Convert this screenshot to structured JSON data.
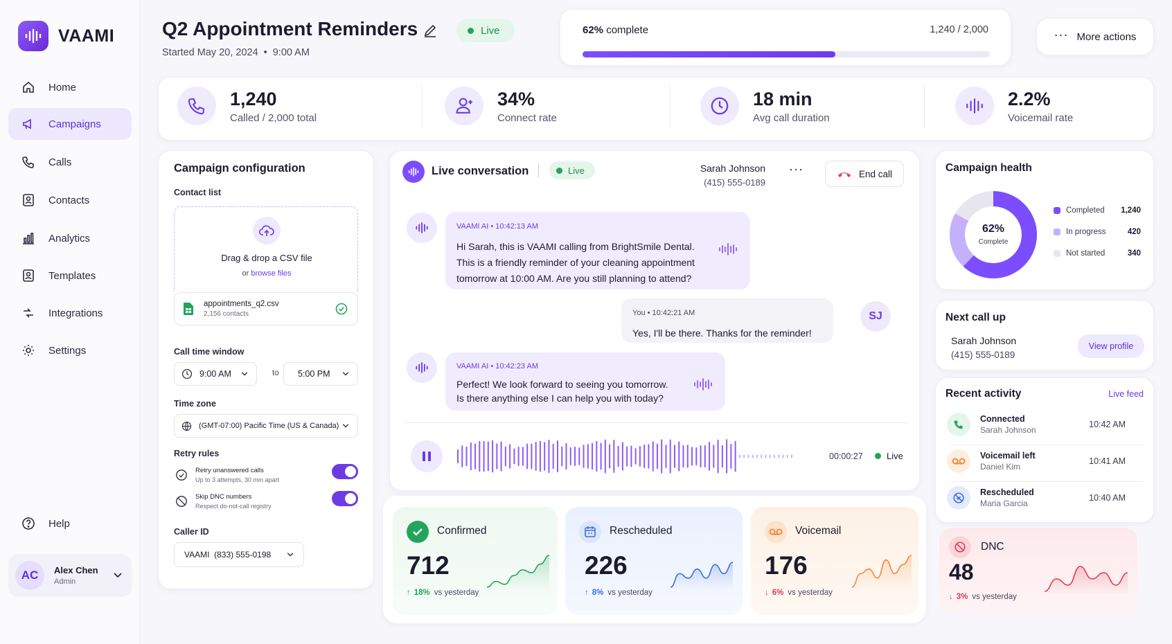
{
  "brand": {
    "name": "VAAMI",
    "accent": "#6c3be4"
  },
  "nav": {
    "items": [
      {
        "label": "Home",
        "icon": "home-icon"
      },
      {
        "label": "Campaigns",
        "icon": "megaphone-icon",
        "active": true
      },
      {
        "label": "Calls",
        "icon": "phone-icon"
      },
      {
        "label": "Contacts",
        "icon": "contacts-icon"
      },
      {
        "label": "Analytics",
        "icon": "bar-chart-icon"
      },
      {
        "label": "Templates",
        "icon": "template-icon"
      },
      {
        "label": "Integrations",
        "icon": "integrations-icon"
      },
      {
        "label": "Settings",
        "icon": "gear-icon"
      }
    ],
    "help": "Help",
    "user": {
      "initials": "AC",
      "name": "Alex Chen",
      "role": "Admin"
    }
  },
  "header": {
    "title": "Q2 Appointment Reminders",
    "started": "Started May 20, 2024",
    "time": "9:00 AM",
    "status": "Live",
    "progress_label": "62% complete",
    "progress_pct": "62%",
    "progress_suffix": "complete",
    "progress_count": "1,240 / 2,000",
    "progress_value": 0.62,
    "more_actions": "More actions"
  },
  "stats": [
    {
      "value": "1,240",
      "label": "Called / 2,000 total",
      "icon": "phone-icon"
    },
    {
      "value": "34%",
      "label": "Connect rate",
      "icon": "user-check-icon"
    },
    {
      "value": "18 min",
      "label": "Avg call duration",
      "icon": "clock-icon"
    },
    {
      "value": "2.2%",
      "label": "Voicemail rate",
      "icon": "waveform-icon"
    }
  ],
  "config": {
    "title": "Campaign configuration",
    "contact_list_label": "Contact list",
    "drop_text": "Drag & drop a CSV file",
    "or_text": "or",
    "browse_text": "browse files",
    "file_name": "appointments_q2.csv",
    "file_meta": "2,156 contacts",
    "call_window_label": "Call time window",
    "start_time": "9:00 AM",
    "to_text": "to",
    "end_time": "5:00 PM",
    "timezone_label": "Time zone",
    "timezone": "(GMT-07:00) Pacific Time (US & Canada)",
    "retry_label": "Retry rules",
    "retry1_title": "Retry unanswered calls",
    "retry1_sub": "Up to 3 attempts, 30 min apart",
    "retry2_title": "Skip DNC numbers",
    "retry2_sub": "Respect do-not-call registry",
    "caller_id_label": "Caller ID",
    "caller_id": "VAAMI  (833) 555-0198"
  },
  "conversation": {
    "title": "Live conversation",
    "status": "Live",
    "contact_name": "Sarah Johnson",
    "contact_phone": "(415) 555-0189",
    "end_call": "End call",
    "messages": [
      {
        "sender": "VAAMI AI",
        "time": "10:42:13 AM",
        "text1": "Hi Sarah, this is VAAMI calling from BrightSmile Dental.",
        "text2": "This is a friendly reminder of your cleaning appointment",
        "text3": "tomorrow at 10:00 AM. Are you still planning to attend?"
      },
      {
        "sender": "You",
        "time": "10:42:21 AM",
        "text1": "Yes, I'll be there. Thanks for the reminder!",
        "initials": "SJ"
      },
      {
        "sender": "VAAMI AI",
        "time": "10:42:23 AM",
        "text1": "Perfect! We look forward to seeing you tomorrow.",
        "text2": "Is there anything else I can help you with today?"
      }
    ],
    "timer": "00:00:27",
    "timer_status": "Live"
  },
  "health": {
    "title": "Campaign health",
    "center_pct": "62%",
    "center_label": "Complete",
    "legend": [
      {
        "label": "Completed",
        "value": "1,240",
        "color": "#7c4dff"
      },
      {
        "label": "In progress",
        "value": "420",
        "color": "#c4b1fb"
      },
      {
        "label": "Not started",
        "value": "340",
        "color": "#e7e6ef"
      }
    ]
  },
  "next_call": {
    "title": "Next call up",
    "name": "Sarah Johnson",
    "phone": "(415) 555-0189",
    "button": "View profile"
  },
  "activity": {
    "title": "Recent activity",
    "link": "Live feed",
    "items": [
      {
        "title": "Connected",
        "sub": "Sarah Johnson",
        "time": "10:42 AM",
        "icon": "phone-icon"
      },
      {
        "title": "Voicemail left",
        "sub": "Daniel Kim",
        "time": "10:41 AM",
        "icon": "voicemail-icon"
      },
      {
        "title": "Rescheduled",
        "sub": "Maria Garcia",
        "time": "10:40 AM",
        "icon": "reschedule-icon"
      }
    ]
  },
  "outcomes": [
    {
      "title": "Confirmed",
      "value": "712",
      "delta": "18%",
      "delta_text": "vs yesterday",
      "direction": "up",
      "color": "#22a55a",
      "sparkline": [
        3,
        4,
        3.5,
        5,
        6,
        5.5,
        7,
        8.5
      ]
    },
    {
      "title": "Rescheduled",
      "value": "226",
      "delta": "8%",
      "delta_text": "vs yesterday",
      "direction": "up",
      "color": "#3b6fe0",
      "sparkline": [
        2,
        5,
        4,
        6,
        4,
        7,
        5,
        7.5
      ]
    },
    {
      "title": "Voicemail",
      "value": "176",
      "delta": "6%",
      "delta_text": "vs yesterday",
      "direction": "down",
      "color": "#f08a3c",
      "sparkline": [
        2,
        5,
        6,
        4,
        8,
        5,
        7,
        9
      ]
    },
    {
      "title": "DNC",
      "value": "48",
      "delta": "3%",
      "delta_text": "vs yesterday",
      "direction": "down",
      "color": "#e23b4e",
      "sparkline": [
        3,
        5,
        4,
        7,
        5,
        6,
        4,
        6
      ]
    }
  ]
}
